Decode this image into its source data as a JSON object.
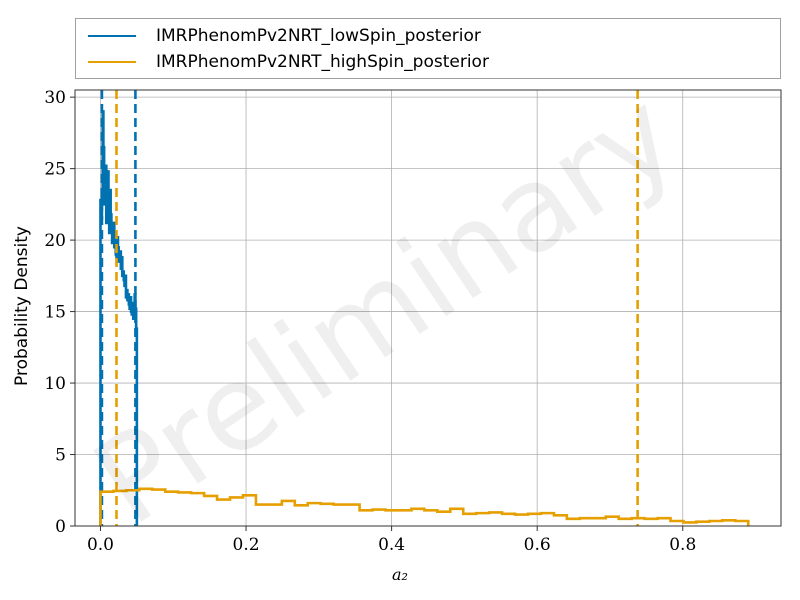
{
  "chart_data": {
    "type": "line",
    "xlabel": "a₂",
    "ylabel": "Probability Density",
    "xlim": [
      -0.035,
      0.935
    ],
    "ylim": [
      0,
      30.5
    ],
    "x_ticks": [
      0.0,
      0.2,
      0.4,
      0.6,
      0.8
    ],
    "x_tick_labels": [
      "0.0",
      "0.2",
      "0.4",
      "0.6",
      "0.8"
    ],
    "y_ticks": [
      0,
      5,
      10,
      15,
      20,
      25,
      30
    ],
    "y_tick_labels": [
      "0",
      "5",
      "10",
      "15",
      "20",
      "25",
      "30"
    ],
    "grid": true,
    "legend_position": "top",
    "watermark": "Preliminary",
    "series": [
      {
        "name": "IMRPhenomPv2NRT_lowSpin_posterior",
        "color": "#0072b2",
        "step_edges": [
          0.0,
          0.001,
          0.002,
          0.003,
          0.004,
          0.005,
          0.006,
          0.007,
          0.008,
          0.009,
          0.01,
          0.011,
          0.012,
          0.013,
          0.014,
          0.015,
          0.016,
          0.017,
          0.018,
          0.019,
          0.02,
          0.021,
          0.022,
          0.023,
          0.024,
          0.025,
          0.026,
          0.027,
          0.028,
          0.029,
          0.03,
          0.031,
          0.032,
          0.033,
          0.034,
          0.035,
          0.036,
          0.037,
          0.038,
          0.039,
          0.04,
          0.041,
          0.042,
          0.043,
          0.044,
          0.045,
          0.046,
          0.047,
          0.048,
          0.049,
          0.05
        ],
        "density": [
          22.8,
          21.5,
          23.5,
          29.0,
          26.5,
          22.5,
          24.0,
          25.2,
          21.2,
          23.0,
          24.8,
          22.0,
          20.5,
          23.5,
          21.8,
          21.0,
          19.8,
          20.5,
          21.2,
          19.5,
          20.0,
          19.0,
          18.8,
          20.2,
          19.5,
          18.5,
          18.8,
          19.2,
          18.0,
          18.8,
          17.5,
          17.8,
          17.2,
          16.8,
          17.5,
          16.0,
          16.5,
          15.8,
          16.2,
          15.5,
          15.2,
          16.0,
          15.0,
          14.8,
          15.6,
          14.5,
          15.0,
          16.2,
          15.2,
          13.8
        ],
        "quantiles": [
          0.002,
          0.048
        ]
      },
      {
        "name": "IMRPhenomPv2NRT_highSpin_posterior",
        "color": "#e69f00",
        "step_edges": [
          0.0,
          0.0178,
          0.0356,
          0.0534,
          0.0712,
          0.089,
          0.1068,
          0.1246,
          0.1424,
          0.1602,
          0.178,
          0.1958,
          0.2136,
          0.2314,
          0.2492,
          0.267,
          0.2848,
          0.3026,
          0.3204,
          0.3382,
          0.356,
          0.3738,
          0.3916,
          0.4094,
          0.4272,
          0.445,
          0.4628,
          0.4806,
          0.4984,
          0.5162,
          0.534,
          0.5518,
          0.5696,
          0.5874,
          0.6052,
          0.623,
          0.6408,
          0.6586,
          0.6764,
          0.6942,
          0.712,
          0.7298,
          0.7476,
          0.7654,
          0.7832,
          0.801,
          0.8188,
          0.8366,
          0.8544,
          0.8722,
          0.89
        ],
        "density": [
          2.4,
          2.45,
          2.5,
          2.6,
          2.55,
          2.4,
          2.35,
          2.3,
          2.1,
          1.85,
          2.0,
          2.15,
          1.5,
          1.5,
          1.75,
          1.45,
          1.6,
          1.55,
          1.5,
          1.5,
          1.1,
          1.15,
          1.1,
          1.1,
          1.2,
          1.1,
          1.0,
          1.2,
          0.85,
          0.9,
          0.95,
          0.85,
          0.8,
          0.85,
          0.9,
          0.75,
          0.5,
          0.55,
          0.55,
          0.65,
          0.5,
          0.55,
          0.5,
          0.55,
          0.35,
          0.25,
          0.3,
          0.35,
          0.4,
          0.35
        ],
        "quantiles": [
          0.022,
          0.738
        ]
      }
    ]
  }
}
